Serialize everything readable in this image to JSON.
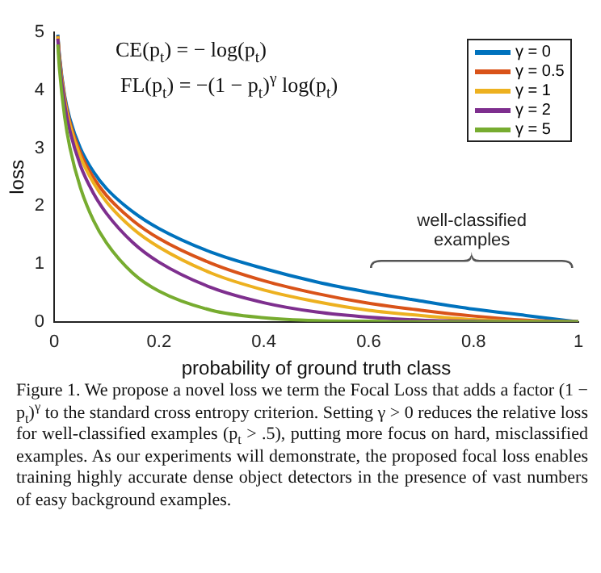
{
  "chart_data": {
    "type": "line",
    "xlabel": "probability of ground truth class",
    "ylabel": "loss",
    "x": [
      0.007,
      0.01,
      0.02,
      0.03,
      0.05,
      0.075,
      0.1,
      0.15,
      0.2,
      0.3,
      0.4,
      0.5,
      0.6,
      0.7,
      0.8,
      0.9,
      1
    ],
    "series": [
      {
        "name": "γ = 0",
        "color": "#0072bd",
        "values": [
          4.96,
          4.61,
          3.91,
          3.51,
          3.0,
          2.59,
          2.3,
          1.9,
          1.61,
          1.2,
          0.92,
          0.69,
          0.51,
          0.36,
          0.22,
          0.11,
          0
        ]
      },
      {
        "name": "γ = 0.5",
        "color": "#d95319",
        "values": [
          4.94,
          4.58,
          3.87,
          3.45,
          2.92,
          2.49,
          2.18,
          1.75,
          1.44,
          1.01,
          0.71,
          0.49,
          0.32,
          0.2,
          0.1,
          0.03,
          0
        ]
      },
      {
        "name": "γ = 1",
        "color": "#edb120",
        "values": [
          4.93,
          4.56,
          3.83,
          3.4,
          2.85,
          2.4,
          2.07,
          1.61,
          1.29,
          0.84,
          0.55,
          0.35,
          0.2,
          0.11,
          0.04,
          0.01,
          0
        ]
      },
      {
        "name": "γ = 2",
        "color": "#7e2f8e",
        "values": [
          4.89,
          4.51,
          3.76,
          3.3,
          2.7,
          2.22,
          1.87,
          1.37,
          1.03,
          0.59,
          0.33,
          0.17,
          0.08,
          0.03,
          0.01,
          0,
          0
        ]
      },
      {
        "name": "γ = 5",
        "color": "#77ac30",
        "values": [
          4.79,
          4.38,
          3.54,
          3.01,
          2.32,
          1.75,
          1.36,
          0.84,
          0.53,
          0.2,
          0.07,
          0.02,
          0.01,
          0,
          0,
          0,
          0
        ]
      }
    ],
    "xlim": [
      0,
      1
    ],
    "xticks": [
      0,
      0.2,
      0.4,
      0.6,
      0.8,
      1
    ],
    "ylim": [
      0,
      5
    ],
    "yticks": [
      0,
      1,
      2,
      3,
      4,
      5
    ],
    "grid": false,
    "legend": "top right",
    "marker": "none",
    "line_style": "solid",
    "annotations": [
      "CE(p$_{t}$) = − log(p$_{t}$)",
      "FL(p$_{t}$) = −(1 − p$_{t}$)$^{γ}$ log(p$_{t}$)",
      "well-classified examples",
      "Figure 1. We propose a novel loss we term the Focal Loss that adds a factor (1 − p$_{t}$)$^{γ}$ to the standard cross entropy criterion. Setting γ > 0 reduces the relative loss for well-classified examples (p$_{t}$ > .5), putting more focus on hard, misclassified examples. As our experiments will demonstrate, the proposed focal loss enables training highly accurate dense object detectors in the presence of vast numbers of easy background examples."
    ]
  }
}
